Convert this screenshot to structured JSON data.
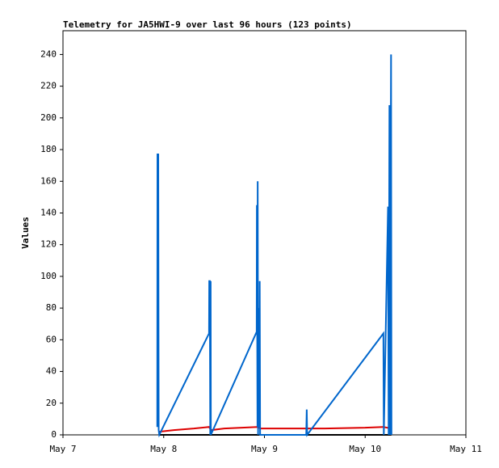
{
  "chart_data": {
    "type": "line",
    "title": "Telemetry for JA5HWI-9 over last 96 hours (123 points)",
    "y_label": "Values",
    "xlim": [
      7,
      11
    ],
    "xticks": [
      {
        "value": 7,
        "label": "May 7"
      },
      {
        "value": 8,
        "label": "May 8"
      },
      {
        "value": 9,
        "label": "May 9"
      },
      {
        "value": 10,
        "label": "May 10"
      },
      {
        "value": 11,
        "label": "May 11"
      }
    ],
    "ylim": [
      0,
      255
    ],
    "yticks": [
      0,
      20,
      40,
      60,
      80,
      100,
      120,
      140,
      160,
      180,
      200,
      220,
      240
    ],
    "grid": false,
    "series": [
      {
        "color": "#000000",
        "x": [
          7.955,
          10.26
        ],
        "values": [
          0,
          0
        ]
      },
      {
        "color": "#dd0000",
        "x": [
          7.955,
          8.1,
          8.3,
          8.45,
          8.47,
          8.6,
          8.93,
          8.96,
          9.43,
          9.6,
          10.0,
          10.18,
          10.26
        ],
        "values": [
          2,
          3,
          4,
          5,
          3,
          4,
          5,
          4,
          4,
          4,
          4.5,
          5,
          4
        ]
      },
      {
        "color": "#0066cc",
        "x": [
          7.936,
          7.938,
          7.946,
          7.95,
          7.956,
          8.45,
          8.452,
          8.458,
          8.462,
          8.466,
          8.468,
          8.923,
          8.925,
          8.931,
          8.933,
          8.937,
          8.941,
          8.95,
          8.953,
          8.957,
          9.415,
          9.42,
          9.424,
          10.181,
          10.185,
          10.227,
          10.231,
          10.233,
          10.241,
          10.245,
          10.257,
          10.261
        ],
        "values": [
          5,
          177,
          177,
          3,
          0,
          64,
          97,
          97,
          0,
          97,
          0,
          65,
          145,
          5,
          160,
          0,
          80,
          5,
          97,
          0,
          0,
          16,
          0,
          64,
          0,
          144,
          48,
          0,
          208,
          0,
          240,
          0
        ]
      }
    ]
  }
}
